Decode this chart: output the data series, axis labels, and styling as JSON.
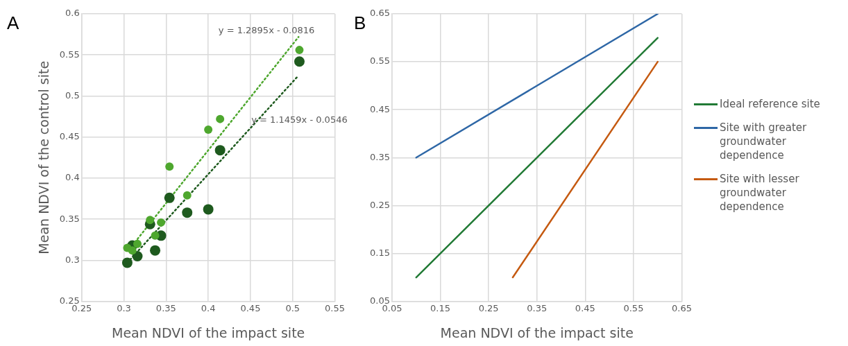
{
  "chart_data": [
    {
      "type": "scatter",
      "title": "A",
      "xlabel": "Mean NDVI of the impact site",
      "ylabel": "Mean NDVI of the control site",
      "xlim": [
        0.25,
        0.55
      ],
      "xticks": [
        0.25,
        0.3,
        0.35,
        0.4,
        0.45,
        0.5,
        0.55
      ],
      "ylim": [
        0.25,
        0.6
      ],
      "yticks": [
        0.25,
        0.3,
        0.35,
        0.4,
        0.45,
        0.5,
        0.55,
        0.6
      ],
      "grid": true,
      "marker": "circle",
      "series": [
        {
          "color": "#4ea72e",
          "x": [
            0.304,
            0.31,
            0.316,
            0.331,
            0.337,
            0.344,
            0.354,
            0.375,
            0.4,
            0.414,
            0.508
          ],
          "values": [
            0.315,
            0.312,
            0.32,
            0.349,
            0.33,
            0.346,
            0.414,
            0.379,
            0.459,
            0.472,
            0.556
          ]
        },
        {
          "color": "#1e5a1e",
          "x": [
            0.304,
            0.31,
            0.316,
            0.331,
            0.337,
            0.344,
            0.354,
            0.375,
            0.4,
            0.414,
            0.508
          ],
          "values": [
            0.297,
            0.318,
            0.305,
            0.344,
            0.312,
            0.33,
            0.376,
            0.358,
            0.362,
            0.434,
            0.542
          ]
        },
        {
          "type": "line",
          "color": "#4ea72e",
          "line_style": "dotted",
          "marker": "none",
          "x": [
            0.31,
            0.507
          ],
          "values": [
            0.318,
            0.572
          ]
        },
        {
          "type": "line",
          "color": "#1e5a1e",
          "line_style": "dotted",
          "marker": "none",
          "x": [
            0.304,
            0.507
          ],
          "values": [
            0.297,
            0.525
          ]
        }
      ],
      "annotations": [
        "y = 1.2895x - 0.0816",
        "y = 1.1459x - 0.0546"
      ]
    },
    {
      "type": "line",
      "title": "B",
      "xlabel": "Mean NDVI of the impact site",
      "xlim": [
        0.05,
        0.65
      ],
      "xticks": [
        0.05,
        0.15,
        0.25,
        0.35,
        0.45,
        0.55,
        0.65
      ],
      "ylim": [
        0.05,
        0.65
      ],
      "yticks": [
        0.05,
        0.15,
        0.25,
        0.35,
        0.45,
        0.55,
        0.65
      ],
      "grid": true,
      "marker": "none",
      "line_style": "solid",
      "legend": "right",
      "series": [
        {
          "name": "Ideal reference site",
          "color": "#217a35",
          "x": [
            0.1,
            0.6
          ],
          "values": [
            0.1,
            0.6
          ]
        },
        {
          "name": "Site with greater groundwater dependence",
          "color": "#2e67a6",
          "x": [
            0.1,
            0.6
          ],
          "values": [
            0.35,
            0.65
          ]
        },
        {
          "name": "Site with lesser groundwater dependence",
          "color": "#c55a11",
          "x": [
            0.3,
            0.6
          ],
          "values": [
            0.1,
            0.55
          ]
        }
      ]
    }
  ]
}
